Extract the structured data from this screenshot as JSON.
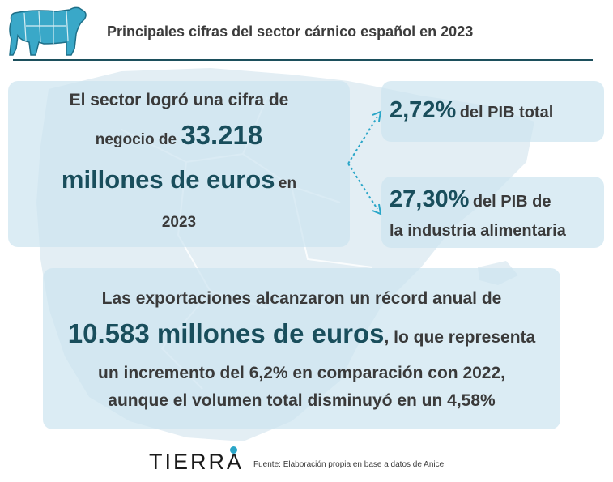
{
  "header": {
    "icon": "bull-cuts-icon",
    "title": "Principales cifras del sector cárnico español en 2023"
  },
  "turnover_card": {
    "line1": "El sector logró una cifra de",
    "line2_prefix": "negocio de",
    "amount": "33.218",
    "amount_unit": "millones de euros",
    "suffix": "en",
    "year": "2023"
  },
  "gdp_total_card": {
    "value": "2,72%",
    "label": "del PIB total"
  },
  "gdp_food_card": {
    "value": "27,30%",
    "label_line1": "del PIB de",
    "label_line2": "la industria alimentaria"
  },
  "exports_card": {
    "line1": "Las exportaciones alcanzaron un récord anual de",
    "amount": "10.583 millones de euros",
    "line2_suffix": ", lo que representa",
    "line3": "un incremento del 6,2% en comparación con 2022,",
    "line4": "aunque el volumen total disminuyó en un 4,58%"
  },
  "footer": {
    "logo": "TIERRA",
    "source": "Fuente: Elaboración propia en base a datos de Anice"
  },
  "colors": {
    "accent": "#194e5c",
    "card": "#cde4f0",
    "map": "#e3eef4",
    "logo_dot": "#2aa6c8"
  }
}
